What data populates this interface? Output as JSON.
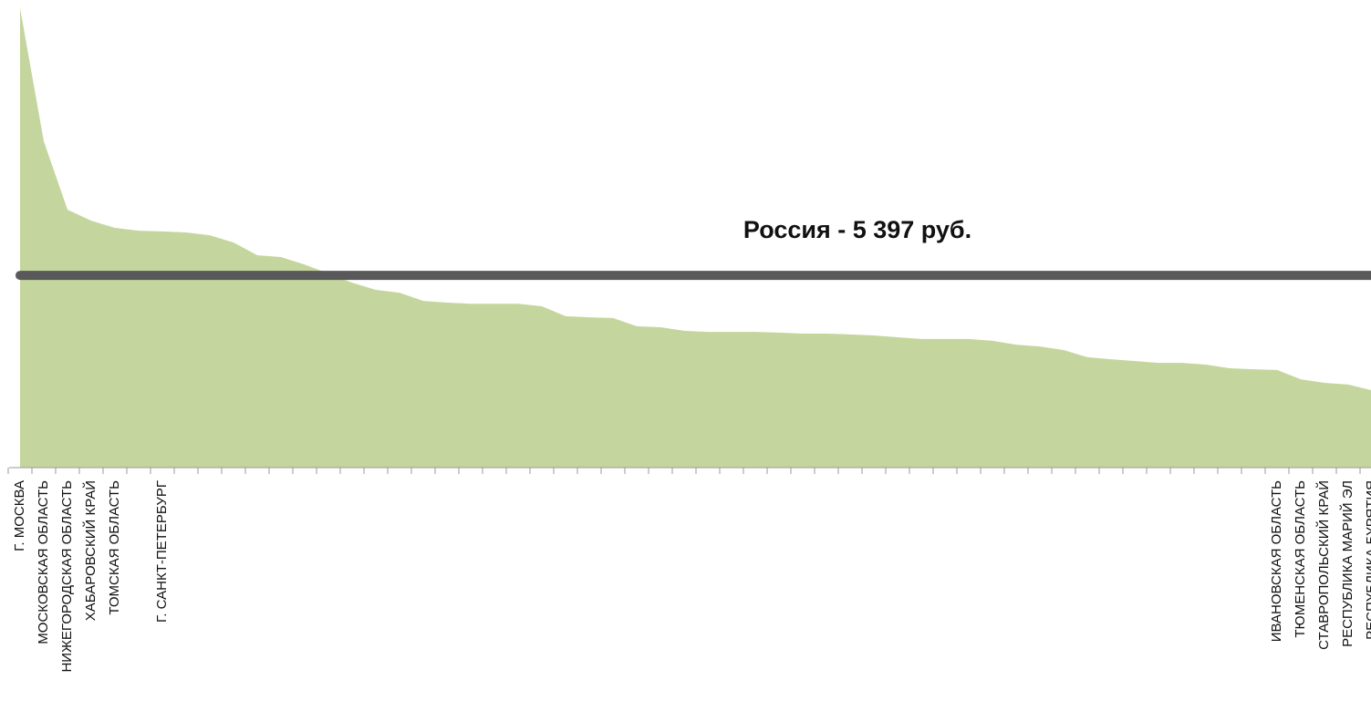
{
  "chart_data": {
    "type": "area",
    "categories": [
      "Г. МОСКВА",
      "МОСКОВСКАЯ ОБЛАСТЬ",
      "НИЖЕГОРОДСКАЯ ОБЛАСТЬ",
      "ХАБАРОВСКИЙ КРАЙ",
      "ТОМСКАЯ ОБЛАСТЬ",
      null,
      "Г. САНКТ-ПЕТЕРБУРГ",
      null,
      null,
      null,
      null,
      null,
      null,
      null,
      null,
      null,
      null,
      null,
      null,
      null,
      null,
      null,
      null,
      null,
      null,
      null,
      null,
      null,
      null,
      null,
      null,
      null,
      null,
      null,
      null,
      null,
      null,
      null,
      null,
      null,
      null,
      null,
      null,
      null,
      null,
      null,
      null,
      null,
      null,
      null,
      null,
      null,
      null,
      "ИВАНОВСКАЯ ОБЛАСТЬ",
      "ТЮМЕНСКАЯ ОБЛАСТЬ",
      "СТАВРОПОЛЬСКИЙ КРАЙ",
      "РЕСПУБЛИКА МАРИЙ ЭЛ",
      "РЕСПУБЛИКА БУРЯТИЯ"
    ],
    "values": [
      12900,
      9160,
      7240,
      6930,
      6730,
      6650,
      6630,
      6600,
      6520,
      6320,
      5960,
      5910,
      5700,
      5450,
      5190,
      4990,
      4910,
      4680,
      4630,
      4600,
      4600,
      4600,
      4530,
      4250,
      4220,
      4200,
      3970,
      3940,
      3840,
      3810,
      3810,
      3810,
      3790,
      3760,
      3760,
      3740,
      3710,
      3660,
      3610,
      3610,
      3610,
      3560,
      3450,
      3400,
      3300,
      3100,
      3040,
      2990,
      2940,
      2940,
      2890,
      2790,
      2760,
      2740,
      2480,
      2380,
      2330,
      2170
    ],
    "color": "#c4d69e",
    "ylim": [
      0,
      13100
    ],
    "reference": {
      "label": "Россия - 5 397 руб.",
      "value": 5397,
      "color": "#595959"
    }
  }
}
